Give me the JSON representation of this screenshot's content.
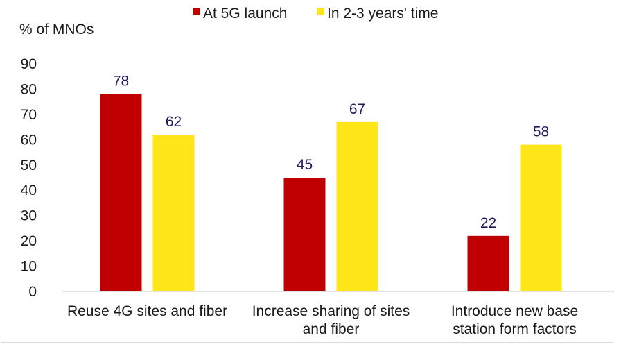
{
  "chart_data": {
    "type": "bar",
    "title": "",
    "ylabel": "% of MNOs",
    "xlabel": "",
    "ylim": [
      0,
      90
    ],
    "yticks": [
      0,
      10,
      20,
      30,
      40,
      50,
      60,
      70,
      80,
      90
    ],
    "grid": false,
    "legend_position": "top",
    "categories": [
      [
        "Reuse 4G sites and fiber"
      ],
      [
        "Increase sharing of sites",
        "and fiber"
      ],
      [
        "Introduce new base",
        "station form factors"
      ]
    ],
    "series": [
      {
        "name": "At 5G launch",
        "color": "#c00000",
        "values": [
          78,
          45,
          22
        ]
      },
      {
        "name": "In 2-3 years' time",
        "color": "#ffe619",
        "values": [
          62,
          67,
          58
        ]
      }
    ],
    "data_label_color": "#1f1a5c"
  }
}
